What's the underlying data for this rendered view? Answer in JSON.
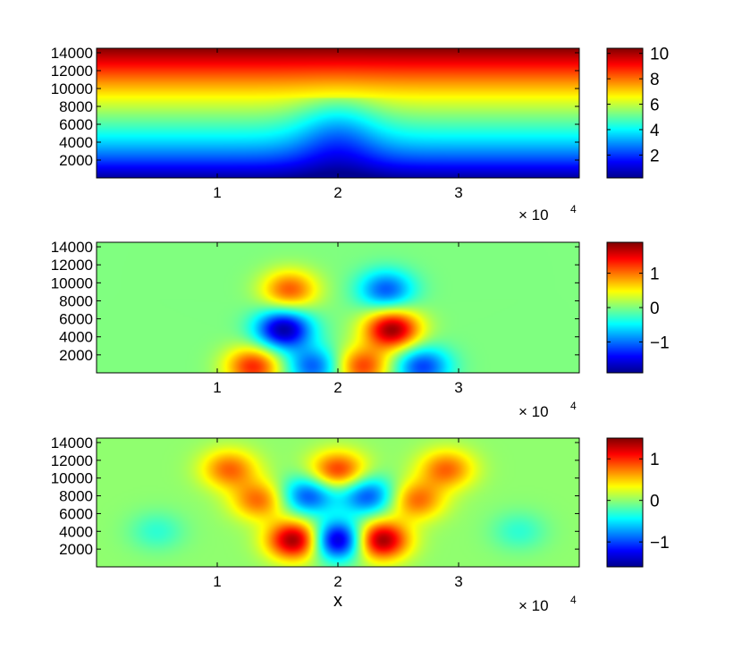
{
  "colors": {
    "colormap": [
      "#00008f",
      "#0000ff",
      "#00ffff",
      "#ffff00",
      "#ff0000",
      "#800000"
    ],
    "frame": "#000000"
  },
  "chart_data": [
    {
      "type": "heatmap",
      "panel": "top",
      "x_range": [
        0,
        40000
      ],
      "y_range": [
        0,
        14500
      ],
      "x_ticks": [
        10000,
        20000,
        30000
      ],
      "x_tick_labels": [
        "1",
        "2",
        "3"
      ],
      "x_multiplier": "× 10",
      "x_multiplier_exp": "4",
      "y_ticks": [
        2000,
        4000,
        6000,
        8000,
        10000,
        12000,
        14000
      ],
      "y_tick_labels": [
        "2000",
        "4000",
        "6000",
        "8000",
        "10000",
        "12000",
        "14000"
      ],
      "xlabel": "",
      "ylabel": "",
      "colorbar": {
        "range": [
          0.2,
          10.4
        ],
        "ticks": [
          2,
          4,
          6,
          8,
          10
        ],
        "tick_labels": [
          "2",
          "4",
          "6",
          "8",
          "10"
        ]
      },
      "field": {
        "description": "value increases with height; dip centred at x=2e4",
        "center_x": 20000
      }
    },
    {
      "type": "heatmap",
      "panel": "middle",
      "x_range": [
        0,
        40000
      ],
      "y_range": [
        0,
        14500
      ],
      "x_ticks": [
        10000,
        20000,
        30000
      ],
      "x_tick_labels": [
        "1",
        "2",
        "3"
      ],
      "x_multiplier": "× 10",
      "x_multiplier_exp": "4",
      "y_ticks": [
        2000,
        4000,
        6000,
        8000,
        10000,
        12000,
        14000
      ],
      "y_tick_labels": [
        "2000",
        "4000",
        "6000",
        "8000",
        "10000",
        "12000",
        "14000"
      ],
      "xlabel": "",
      "ylabel": "",
      "colorbar": {
        "range": [
          -1.9,
          1.9
        ],
        "ticks": [
          -1,
          0,
          1
        ],
        "tick_labels": [
          "−1",
          "0",
          "1"
        ]
      },
      "blobs": [
        {
          "x": 15500,
          "y": 4800,
          "value": -1.8
        },
        {
          "x": 24500,
          "y": 4800,
          "value": 1.8
        },
        {
          "x": 16000,
          "y": 9200,
          "value": 1.1
        },
        {
          "x": 24000,
          "y": 9200,
          "value": -1.1
        },
        {
          "x": 13000,
          "y": 700,
          "value": 1.3
        },
        {
          "x": 27000,
          "y": 700,
          "value": -1.2
        },
        {
          "x": 18000,
          "y": 700,
          "value": -1.1
        },
        {
          "x": 22000,
          "y": 700,
          "value": 1.2
        }
      ]
    },
    {
      "type": "heatmap",
      "panel": "bottom",
      "x_range": [
        0,
        40000
      ],
      "y_range": [
        0,
        14500
      ],
      "x_ticks": [
        10000,
        20000,
        30000
      ],
      "x_tick_labels": [
        "1",
        "2",
        "3"
      ],
      "x_multiplier": "× 10",
      "x_multiplier_exp": "4",
      "y_ticks": [
        2000,
        4000,
        6000,
        8000,
        10000,
        12000,
        14000
      ],
      "y_tick_labels": [
        "2000",
        "4000",
        "6000",
        "8000",
        "10000",
        "12000",
        "14000"
      ],
      "xlabel": "x",
      "ylabel": "",
      "colorbar": {
        "range": [
          -1.6,
          1.5
        ],
        "ticks": [
          -1,
          0,
          1
        ],
        "tick_labels": [
          "−1",
          "0",
          "1"
        ]
      },
      "blobs": [
        {
          "x": 16500,
          "y": 3000,
          "value": 1.5
        },
        {
          "x": 23500,
          "y": 3000,
          "value": 1.5
        },
        {
          "x": 20000,
          "y": 3000,
          "value": -1.6
        },
        {
          "x": 20000,
          "y": 10800,
          "value": 1.0
        },
        {
          "x": 17500,
          "y": 8000,
          "value": -1.0
        },
        {
          "x": 22500,
          "y": 8000,
          "value": -1.0
        },
        {
          "x": 11000,
          "y": 11000,
          "value": 0.8
        },
        {
          "x": 29000,
          "y": 11000,
          "value": 0.8
        },
        {
          "x": 13500,
          "y": 7500,
          "value": 0.8
        },
        {
          "x": 26500,
          "y": 7500,
          "value": 0.8
        },
        {
          "x": 5000,
          "y": 4000,
          "value": -0.3
        },
        {
          "x": 35000,
          "y": 4000,
          "value": -0.3
        }
      ]
    }
  ]
}
